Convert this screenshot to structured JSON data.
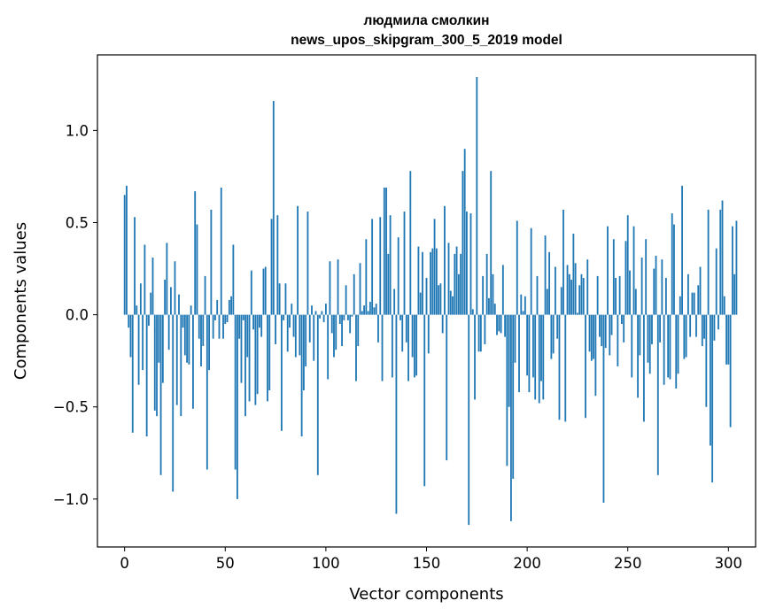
{
  "chart_data": {
    "type": "bar",
    "title": "людмила смолкин",
    "subtitle": "news_upos_skipgram_300_5_2019 model",
    "xlabel": "Vector components",
    "ylabel": "Components values",
    "xlim": [
      -13.5,
      313.5
    ],
    "ylim": [
      -1.26,
      1.41
    ],
    "x_ticks": [
      0,
      50,
      100,
      150,
      200,
      250,
      300
    ],
    "x_tick_labels": [
      "0",
      "50",
      "100",
      "150",
      "200",
      "250",
      "300"
    ],
    "y_ticks": [
      -1.0,
      -0.5,
      0.0,
      0.5,
      1.0
    ],
    "y_tick_labels": [
      "−1.0",
      "−0.5",
      "0.0",
      "0.5",
      "1.0"
    ],
    "bar_color": "#1f77b4",
    "values": [
      0.65,
      0.7,
      -0.07,
      -0.23,
      -0.64,
      0.53,
      0.05,
      -0.38,
      0.17,
      -0.3,
      0.38,
      -0.66,
      -0.06,
      0.12,
      0.31,
      -0.52,
      -0.55,
      -0.26,
      -0.87,
      -0.37,
      0.19,
      0.39,
      -0.19,
      0.15,
      -0.96,
      0.29,
      -0.49,
      0.11,
      -0.55,
      -0.07,
      -0.22,
      -0.26,
      -0.27,
      0.05,
      -0.51,
      0.67,
      0.49,
      -0.13,
      -0.28,
      -0.17,
      0.21,
      -0.84,
      -0.3,
      0.57,
      -0.13,
      -0.03,
      0.08,
      -0.13,
      0.69,
      -0.13,
      -0.05,
      -0.04,
      0.08,
      0.1,
      0.38,
      -0.84,
      -1.0,
      -0.13,
      -0.37,
      -0.03,
      -0.55,
      -0.23,
      -0.47,
      0.24,
      -0.08,
      -0.49,
      -0.43,
      -0.07,
      -0.12,
      0.25,
      0.26,
      -0.47,
      -0.41,
      0.52,
      1.16,
      -0.16,
      0.54,
      0.17,
      -0.63,
      -0.03,
      0.17,
      -0.2,
      -0.07,
      0.06,
      -0.12,
      -0.23,
      0.59,
      -0.22,
      -0.66,
      -0.41,
      -0.28,
      0.56,
      -0.15,
      0.05,
      -0.25,
      0.02,
      -0.87,
      -0.02,
      0.02,
      -0.04,
      0.06,
      -0.35,
      0.29,
      -0.1,
      -0.23,
      -0.19,
      0.3,
      -0.05,
      -0.17,
      -0.03,
      0.16,
      -0.03,
      -0.1,
      -0.01,
      0.22,
      -0.36,
      -0.17,
      0.28,
      0.02,
      0.05,
      0.41,
      0.02,
      0.07,
      0.52,
      0.04,
      0.06,
      -0.15,
      0.53,
      -0.36,
      0.69,
      0.69,
      0.33,
      0.54,
      -0.34,
      0.14,
      -1.08,
      0.42,
      -0.03,
      -0.2,
      0.56,
      -0.15,
      -0.36,
      0.78,
      -0.23,
      -0.34,
      -0.33,
      0.37,
      0.12,
      0.34,
      -0.93,
      0.2,
      -0.21,
      0.34,
      0.36,
      0.52,
      0.36,
      0.16,
      0.17,
      -0.1,
      0.59,
      -0.79,
      0.39,
      0.13,
      0.1,
      0.33,
      0.37,
      0.22,
      0.33,
      0.78,
      0.9,
      0.56,
      -1.14,
      0.55,
      0.03,
      -0.46,
      1.29,
      -0.2,
      -0.2,
      0.21,
      -0.16,
      0.33,
      0.09,
      0.78,
      0.22,
      0.06,
      -0.11,
      -0.09,
      -0.1,
      0.27,
      -0.12,
      -0.82,
      -0.5,
      -1.12,
      -0.89,
      -0.26,
      0.51,
      -0.42,
      0.11,
      0.02,
      0.1,
      -0.33,
      -0.42,
      0.47,
      -0.34,
      -0.46,
      0.21,
      -0.48,
      -0.36,
      -0.46,
      0.43,
      0.14,
      0.34,
      -0.24,
      -0.21,
      0.26,
      -0.13,
      -0.57,
      0.15,
      0.57,
      -0.58,
      0.27,
      0.22,
      0.19,
      0.44,
      0.28,
      0.01,
      0.16,
      0.22,
      0.2,
      -0.56,
      0.3,
      -0.2,
      -0.25,
      -0.24,
      -0.44,
      0.21,
      -0.12,
      -0.17,
      -1.02,
      -0.18,
      0.48,
      -0.22,
      -0.11,
      0.41,
      0.2,
      -0.28,
      0.21,
      -0.05,
      -0.15,
      0.4,
      0.54,
      0.24,
      -0.34,
      0.48,
      0.14,
      -0.45,
      -0.22,
      0.31,
      -0.58,
      0.41,
      -0.26,
      -0.32,
      -0.16,
      0.25,
      0.32,
      -0.87,
      -0.15,
      0.3,
      -0.38,
      0.2,
      -0.34,
      -0.35,
      0.55,
      0.49,
      -0.4,
      -0.32,
      0.1,
      0.7,
      -0.24,
      -0.23,
      0.22,
      -0.12,
      0.12,
      0.12,
      -0.12,
      0.16,
      0.26,
      -0.17,
      -0.13,
      -0.5,
      0.57,
      -0.71,
      -0.91,
      -0.14,
      0.36,
      -0.08,
      0.57,
      0.62,
      0.1,
      -0.27,
      -0.27,
      -0.61,
      0.48,
      0.22,
      0.51
    ]
  }
}
